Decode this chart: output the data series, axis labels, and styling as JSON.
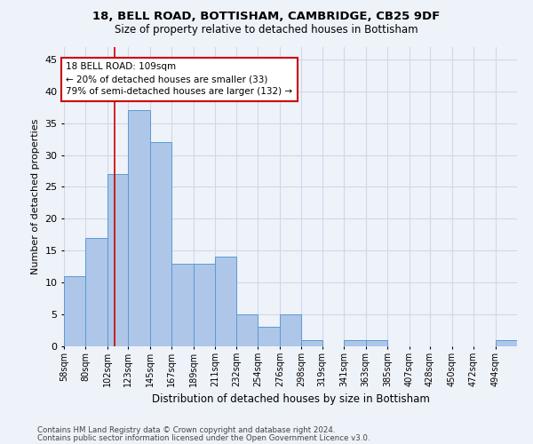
{
  "title1": "18, BELL ROAD, BOTTISHAM, CAMBRIDGE, CB25 9DF",
  "title2": "Size of property relative to detached houses in Bottisham",
  "xlabel": "Distribution of detached houses by size in Bottisham",
  "ylabel": "Number of detached properties",
  "bin_labels": [
    "58sqm",
    "80sqm",
    "102sqm",
    "123sqm",
    "145sqm",
    "167sqm",
    "189sqm",
    "211sqm",
    "232sqm",
    "254sqm",
    "276sqm",
    "298sqm",
    "319sqm",
    "341sqm",
    "363sqm",
    "385sqm",
    "407sqm",
    "428sqm",
    "450sqm",
    "472sqm",
    "494sqm"
  ],
  "bin_edges": [
    58,
    80,
    102,
    123,
    145,
    167,
    189,
    211,
    232,
    254,
    276,
    298,
    319,
    341,
    363,
    385,
    407,
    428,
    450,
    472,
    494
  ],
  "bar_values": [
    11,
    17,
    27,
    37,
    32,
    13,
    13,
    14,
    5,
    3,
    5,
    1,
    0,
    1,
    1,
    0,
    0,
    0,
    0,
    0,
    1
  ],
  "bar_color": "#aec6e8",
  "bar_edge_color": "#5b9bd5",
  "grid_color": "#d0d8e8",
  "vline_x": 109,
  "vline_color": "#cc0000",
  "annotation_line1": "18 BELL ROAD: 109sqm",
  "annotation_line2": "← 20% of detached houses are smaller (33)",
  "annotation_line3": "79% of semi-detached houses are larger (132) →",
  "annotation_box_color": "#ffffff",
  "annotation_box_edge": "#cc0000",
  "ylim": [
    0,
    47
  ],
  "yticks": [
    0,
    5,
    10,
    15,
    20,
    25,
    30,
    35,
    40,
    45
  ],
  "footer1": "Contains HM Land Registry data © Crown copyright and database right 2024.",
  "footer2": "Contains public sector information licensed under the Open Government Licence v3.0.",
  "background_color": "#eef2f9"
}
